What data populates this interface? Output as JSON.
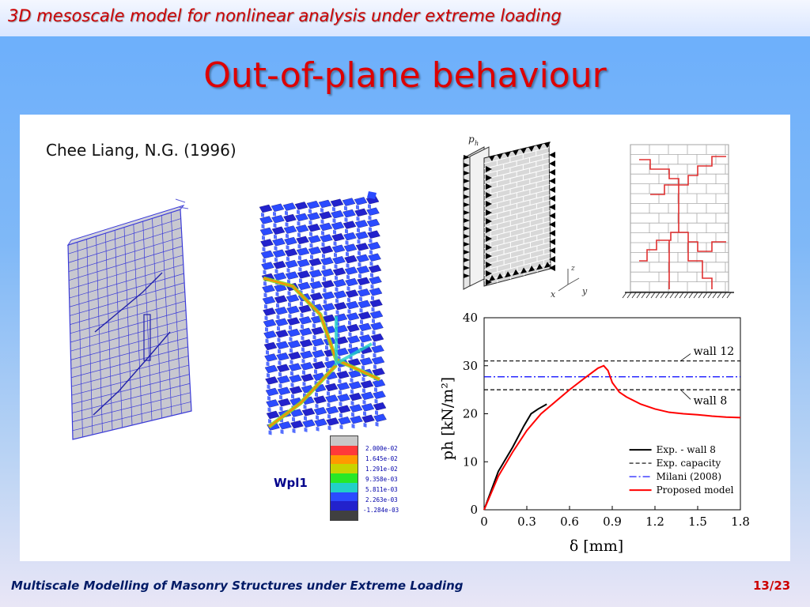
{
  "header": {
    "text": "3D mesoscale model for nonlinear analysis under extreme loading"
  },
  "slide": {
    "title": "Out-of-plane behaviour",
    "citation": "Chee Liang, N.G. (1996)",
    "contour_label": "Wpl1",
    "contour_legend": [
      "2.000e-02",
      "1.645e-02",
      "1.291e-02",
      "9.358e-03",
      "5.811e-03",
      "2.263e-03",
      "-1.284e-03"
    ],
    "contour_colors": [
      "#c8c8c8",
      "#ff3a3a",
      "#ff9a00",
      "#c8d400",
      "#27e827",
      "#22d0c8",
      "#2b4bff",
      "#2222cc",
      "#404040"
    ],
    "diagram_labels": {
      "load": "p_h",
      "axis_x": "x",
      "axis_y": "y",
      "axis_z": "z"
    }
  },
  "chart_data": {
    "type": "line",
    "xlabel": "δ [mm]",
    "ylabel": "ph [kN/m²]",
    "xlim": [
      0,
      1.8
    ],
    "ylim": [
      0,
      40
    ],
    "xticks": [
      "0",
      "0.3",
      "0.6",
      "0.9",
      "1.2",
      "1.5",
      "1.8"
    ],
    "yticks": [
      "0",
      "10",
      "20",
      "30",
      "40"
    ],
    "annotations": [
      "wall 12",
      "wall 8"
    ],
    "series": [
      {
        "name": "Exp. - wall 8",
        "style": "solid",
        "color": "#000000",
        "x": [
          0,
          0.05,
          0.1,
          0.2,
          0.28,
          0.33,
          0.38,
          0.44
        ],
        "y": [
          0,
          4,
          8,
          13,
          17.5,
          20,
          21,
          22
        ]
      },
      {
        "name": "Exp. capacity",
        "style": "dashed",
        "color": "#000000",
        "lines": [
          {
            "x": [
              0,
              1.8
            ],
            "y": [
              31,
              31
            ]
          },
          {
            "x": [
              0,
              1.8
            ],
            "y": [
              25,
              25
            ]
          }
        ]
      },
      {
        "name": "Milani (2008)",
        "style": "dashdot",
        "color": "#0000ff",
        "x": [
          0,
          1.8
        ],
        "y": [
          27.7,
          27.7
        ]
      },
      {
        "name": "Proposed model",
        "style": "solid",
        "color": "#ff0000",
        "x": [
          0,
          0.05,
          0.1,
          0.2,
          0.3,
          0.4,
          0.5,
          0.6,
          0.7,
          0.8,
          0.84,
          0.87,
          0.9,
          0.95,
          1.0,
          1.1,
          1.2,
          1.3,
          1.4,
          1.5,
          1.6,
          1.7,
          1.8
        ],
        "y": [
          0,
          3.5,
          7,
          12,
          16.5,
          20,
          22.5,
          25,
          27.3,
          29.5,
          30,
          29,
          26.5,
          24.5,
          23.5,
          22,
          21,
          20.3,
          20,
          19.8,
          19.5,
          19.3,
          19.2
        ]
      }
    ]
  },
  "footer": {
    "left": "Multiscale Modelling of Masonry Structures under Extreme Loading",
    "page": "13/23"
  },
  "colors": {
    "title": "#dd0000",
    "footer_text": "#001a66",
    "page_number": "#cc0000"
  }
}
